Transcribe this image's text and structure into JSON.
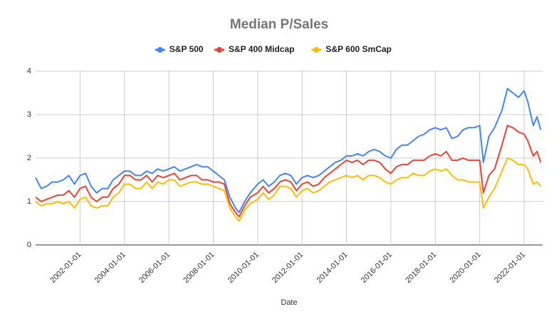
{
  "chart_data": {
    "type": "line",
    "title": "Median P/Sales",
    "x_label": "Date",
    "x": [
      "2000-01-01",
      "2000-04-01",
      "2000-07-01",
      "2000-10-01",
      "2001-01-01",
      "2001-04-01",
      "2001-07-01",
      "2001-10-01",
      "2002-01-01",
      "2002-04-01",
      "2002-07-01",
      "2002-10-01",
      "2003-01-01",
      "2003-04-01",
      "2003-07-01",
      "2003-10-01",
      "2004-01-01",
      "2004-04-01",
      "2004-07-01",
      "2004-10-01",
      "2005-01-01",
      "2005-04-01",
      "2005-07-01",
      "2005-10-01",
      "2006-01-01",
      "2006-04-01",
      "2006-07-01",
      "2006-10-01",
      "2007-01-01",
      "2007-04-01",
      "2007-07-01",
      "2007-10-01",
      "2008-01-01",
      "2008-04-01",
      "2008-07-01",
      "2008-10-01",
      "2009-01-01",
      "2009-03-01",
      "2009-06-01",
      "2009-09-01",
      "2010-01-01",
      "2010-04-01",
      "2010-07-01",
      "2010-10-01",
      "2011-01-01",
      "2011-04-01",
      "2011-07-01",
      "2011-10-01",
      "2012-01-01",
      "2012-04-01",
      "2012-07-01",
      "2012-10-01",
      "2013-01-01",
      "2013-04-01",
      "2013-07-01",
      "2013-10-01",
      "2014-01-01",
      "2014-04-01",
      "2014-07-01",
      "2014-10-01",
      "2015-01-01",
      "2015-04-01",
      "2015-07-01",
      "2015-10-01",
      "2016-01-01",
      "2016-04-01",
      "2016-07-01",
      "2016-10-01",
      "2017-01-01",
      "2017-04-01",
      "2017-07-01",
      "2017-10-01",
      "2018-01-01",
      "2018-04-01",
      "2018-07-01",
      "2018-10-01",
      "2019-01-01",
      "2019-04-01",
      "2019-07-01",
      "2019-10-01",
      "2020-01-01",
      "2020-03-01",
      "2020-06-01",
      "2020-09-01",
      "2021-01-01",
      "2021-04-01",
      "2021-07-01",
      "2021-10-01",
      "2022-01-01",
      "2022-03-01",
      "2022-06-01",
      "2022-08-01",
      "2022-10-01"
    ],
    "series": [
      {
        "name": "S&P 500",
        "color": "#4285f4",
        "values": [
          1.55,
          1.3,
          1.35,
          1.45,
          1.45,
          1.5,
          1.6,
          1.4,
          1.6,
          1.65,
          1.35,
          1.2,
          1.3,
          1.3,
          1.5,
          1.6,
          1.7,
          1.7,
          1.6,
          1.6,
          1.7,
          1.65,
          1.75,
          1.7,
          1.75,
          1.8,
          1.7,
          1.75,
          1.8,
          1.85,
          1.8,
          1.8,
          1.7,
          1.6,
          1.5,
          1.1,
          0.85,
          0.75,
          1.0,
          1.2,
          1.4,
          1.5,
          1.35,
          1.45,
          1.6,
          1.65,
          1.6,
          1.4,
          1.55,
          1.6,
          1.55,
          1.6,
          1.7,
          1.8,
          1.9,
          1.95,
          2.05,
          2.05,
          2.1,
          2.05,
          2.15,
          2.2,
          2.15,
          2.05,
          2.0,
          2.2,
          2.3,
          2.3,
          2.4,
          2.5,
          2.55,
          2.65,
          2.7,
          2.65,
          2.7,
          2.45,
          2.5,
          2.65,
          2.7,
          2.7,
          2.75,
          1.9,
          2.5,
          2.7,
          3.1,
          3.6,
          3.5,
          3.4,
          3.55,
          3.3,
          2.75,
          2.95,
          2.65
        ]
      },
      {
        "name": "S&P 400 Midcap",
        "color": "#ea4335",
        "values": [
          1.1,
          1.0,
          1.05,
          1.1,
          1.15,
          1.15,
          1.25,
          1.1,
          1.3,
          1.35,
          1.1,
          1.0,
          1.1,
          1.1,
          1.3,
          1.4,
          1.6,
          1.6,
          1.5,
          1.5,
          1.6,
          1.45,
          1.6,
          1.55,
          1.6,
          1.65,
          1.5,
          1.55,
          1.6,
          1.6,
          1.5,
          1.5,
          1.45,
          1.45,
          1.4,
          0.95,
          0.75,
          0.65,
          0.9,
          1.1,
          1.2,
          1.35,
          1.2,
          1.3,
          1.45,
          1.5,
          1.45,
          1.25,
          1.4,
          1.45,
          1.35,
          1.4,
          1.55,
          1.65,
          1.75,
          1.85,
          1.95,
          1.9,
          1.95,
          1.85,
          1.95,
          1.95,
          1.9,
          1.75,
          1.65,
          1.8,
          1.85,
          1.85,
          1.95,
          1.95,
          1.95,
          2.05,
          2.1,
          2.05,
          2.15,
          1.95,
          1.95,
          2.0,
          1.95,
          1.95,
          1.95,
          1.2,
          1.6,
          1.75,
          2.3,
          2.75,
          2.7,
          2.6,
          2.55,
          2.4,
          2.05,
          2.15,
          1.9
        ]
      },
      {
        "name": "S&P 600 SmCap",
        "color": "#fbbc04",
        "values": [
          1.0,
          0.9,
          0.95,
          0.95,
          1.0,
          0.95,
          1.0,
          0.85,
          1.05,
          1.1,
          0.9,
          0.85,
          0.9,
          0.9,
          1.1,
          1.2,
          1.4,
          1.4,
          1.3,
          1.3,
          1.45,
          1.3,
          1.45,
          1.4,
          1.5,
          1.5,
          1.35,
          1.4,
          1.45,
          1.45,
          1.4,
          1.4,
          1.35,
          1.3,
          1.25,
          0.85,
          0.65,
          0.55,
          0.8,
          0.95,
          1.05,
          1.2,
          1.05,
          1.15,
          1.35,
          1.35,
          1.3,
          1.1,
          1.25,
          1.3,
          1.2,
          1.25,
          1.35,
          1.45,
          1.5,
          1.55,
          1.6,
          1.55,
          1.6,
          1.5,
          1.6,
          1.6,
          1.55,
          1.45,
          1.4,
          1.5,
          1.55,
          1.55,
          1.65,
          1.6,
          1.6,
          1.7,
          1.75,
          1.7,
          1.75,
          1.6,
          1.5,
          1.5,
          1.45,
          1.45,
          1.45,
          0.85,
          1.1,
          1.3,
          1.7,
          2.0,
          1.95,
          1.85,
          1.85,
          1.75,
          1.4,
          1.45,
          1.35
        ]
      }
    ],
    "xlim": [
      "2000-01-01",
      "2022-11-01"
    ],
    "xticks": [
      "2002-01-01",
      "2004-01-01",
      "2006-01-01",
      "2008-01-01",
      "2010-01-01",
      "2012-01-01",
      "2014-01-01",
      "2016-01-01",
      "2018-01-01",
      "2020-01-01",
      "2022-01-01"
    ],
    "ylim": [
      0,
      4
    ],
    "yticks": [
      0,
      1,
      2,
      3,
      4
    ],
    "grid": true,
    "legend": "top"
  }
}
